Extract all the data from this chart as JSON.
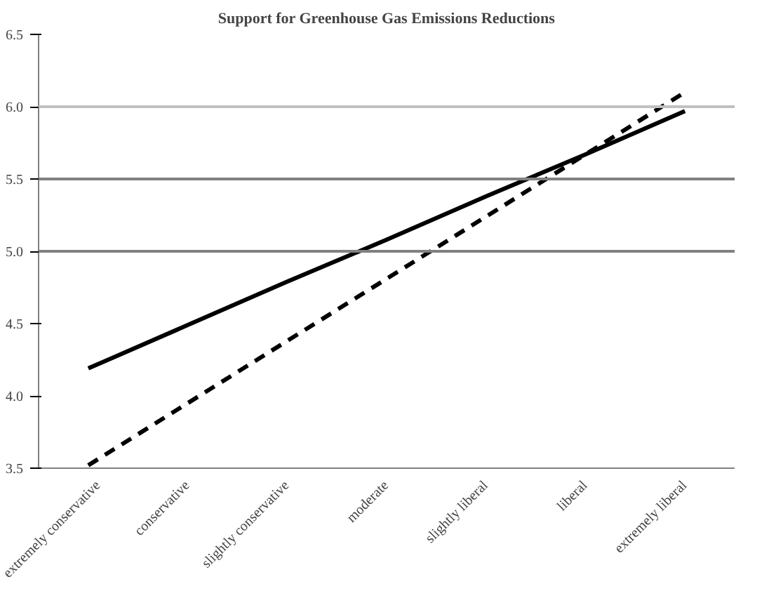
{
  "chart_data": {
    "type": "line",
    "title": "Support for Greenhouse Gas Emissions Reductions",
    "categories": [
      "extremely conservative",
      "conservative",
      "slightly conservative",
      "moderate",
      "slightly liberal",
      "liberal",
      "extremely liberal"
    ],
    "series": [
      {
        "color": "#000000",
        "line_style": "solid",
        "values": [
          4.19,
          4.49,
          4.79,
          5.08,
          5.38,
          5.67,
          5.97
        ]
      },
      {
        "color": "#000000",
        "line_style": "dashed",
        "values": [
          3.52,
          3.95,
          4.38,
          4.81,
          5.24,
          5.67,
          6.1
        ]
      }
    ],
    "ylim": [
      3.5,
      6.5
    ],
    "yticks": [
      3.5,
      {
        "value": 4,
        "label": "4.0"
      },
      4.5,
      {
        "value": 5,
        "label": "5.0"
      },
      5.5,
      {
        "value": 6,
        "label": "6.0"
      },
      6.5
    ],
    "grid": false,
    "marker": "none",
    "ref_lines": [
      {
        "axis": "y",
        "value": 5.0,
        "color": "#808080"
      },
      {
        "axis": "y",
        "value": 5.5,
        "color": "#808080"
      },
      {
        "axis": "y",
        "value": 6.0,
        "color": "#c0c0c0"
      }
    ]
  }
}
